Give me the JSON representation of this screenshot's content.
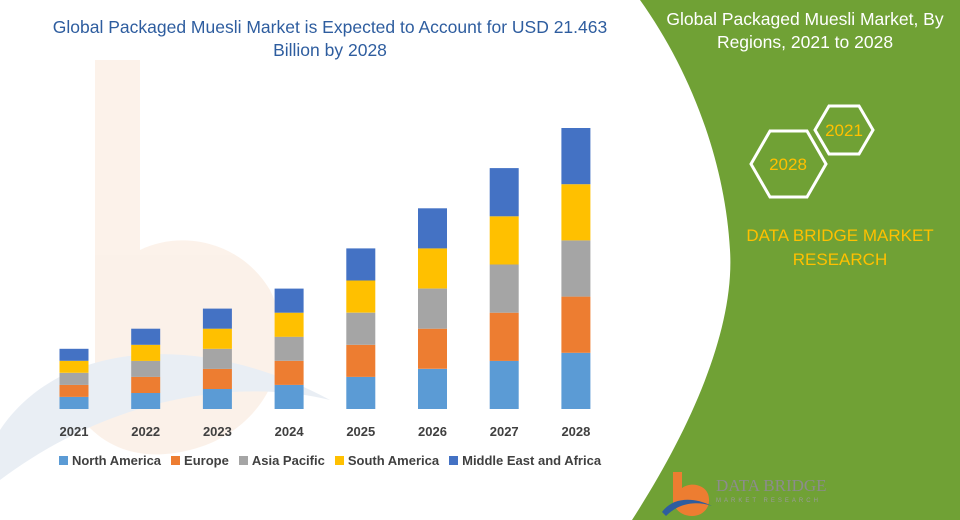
{
  "title": "Global Packaged Muesli Market is Expected to Account for USD 21.463 Billion by 2028",
  "side_panel": {
    "title": "Global Packaged Muesli Market, By Regions, 2021 to 2028",
    "hex_left": "2028",
    "hex_right": "2021",
    "brand": "DATA BRIDGE MARKET RESEARCH",
    "logo_text": "DATA BRIDGE",
    "logo_sub": "MARKET RESEARCH",
    "color_panel": "#70a135",
    "color_brand": "#ffc000"
  },
  "chart_data": {
    "type": "bar",
    "stacked": true,
    "categories": [
      "2021",
      "2022",
      "2023",
      "2024",
      "2025",
      "2026",
      "2027",
      "2028"
    ],
    "series": [
      {
        "name": "North America",
        "color": "#5b9bd5",
        "values": [
          12,
          16,
          20,
          24,
          32,
          40,
          48,
          56
        ]
      },
      {
        "name": "Europe",
        "color": "#ed7d31",
        "values": [
          12,
          16,
          20,
          24,
          32,
          40,
          48,
          56
        ]
      },
      {
        "name": "Asia Pacific",
        "color": "#a5a5a5",
        "values": [
          12,
          16,
          20,
          24,
          32,
          40,
          48,
          56
        ]
      },
      {
        "name": "South America",
        "color": "#ffc000",
        "values": [
          12,
          16,
          20,
          24,
          32,
          40,
          48,
          56
        ]
      },
      {
        "name": "Middle East and Africa",
        "color": "#4472c4",
        "values": [
          12,
          16,
          20,
          24,
          32,
          40,
          48,
          56
        ]
      }
    ],
    "legend_position": "bottom",
    "grid": false
  }
}
